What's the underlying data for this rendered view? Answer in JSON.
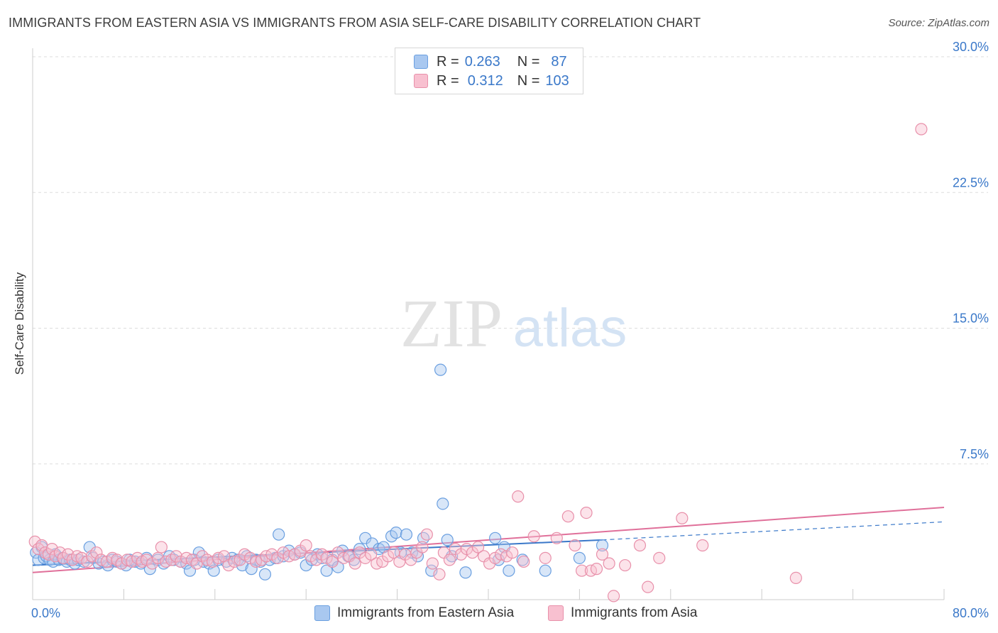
{
  "title": "IMMIGRANTS FROM EASTERN ASIA VS IMMIGRANTS FROM ASIA SELF-CARE DISABILITY CORRELATION CHART",
  "source": "Source: ZipAtlas.com",
  "watermark": {
    "zip": "ZIP",
    "atlas": "atlas"
  },
  "legend": {
    "rows": [
      {
        "r_label": "R =",
        "r_value": "0.263",
        "n_label": "N =",
        "n_value": "87",
        "color": "#a9c8f0",
        "border": "#6a9fe0"
      },
      {
        "r_label": "R =",
        "r_value": "0.312",
        "n_label": "N =",
        "n_value": "103",
        "color": "#f8c0d0",
        "border": "#e890aa"
      }
    ]
  },
  "bottom_legend": [
    {
      "label": "Immigrants from Eastern Asia",
      "color": "#a9c8f0",
      "border": "#6a9fe0"
    },
    {
      "label": "Immigrants from Asia",
      "color": "#f8c0d0",
      "border": "#e890aa"
    }
  ],
  "chart_data": {
    "type": "scatter",
    "title": "IMMIGRANTS FROM EASTERN ASIA VS IMMIGRANTS FROM ASIA SELF-CARE DISABILITY CORRELATION CHART",
    "xlabel": "",
    "ylabel": "Self-Care Disability",
    "xlim": [
      0,
      80
    ],
    "ylim": [
      0,
      30
    ],
    "x_tick_labels": [
      "0.0%",
      "80.0%"
    ],
    "y_ticks": [
      7.5,
      15.0,
      22.5,
      30.0
    ],
    "y_tick_labels": [
      "7.5%",
      "15.0%",
      "22.5%",
      "30.0%"
    ],
    "grid": true,
    "legend_position": "top-center",
    "series": [
      {
        "name": "Immigrants from Eastern Asia",
        "color": "#6a9fe0",
        "fill": "#a9c8f0",
        "trend": {
          "x0": 0,
          "y0": 1.9,
          "x1": 50,
          "y1": 3.3,
          "dash_to_x": 80,
          "dash_to_y": 4.3
        },
        "points": [
          [
            0.3,
            2.6
          ],
          [
            0.5,
            2.2
          ],
          [
            0.8,
            2.9
          ],
          [
            1.0,
            2.3
          ],
          [
            1.2,
            2.4
          ],
          [
            1.5,
            2.2
          ],
          [
            1.8,
            2.1
          ],
          [
            2.0,
            2.5
          ],
          [
            2.3,
            2.2
          ],
          [
            2.6,
            2.3
          ],
          [
            3.0,
            2.1
          ],
          [
            3.3,
            2.2
          ],
          [
            3.7,
            2.0
          ],
          [
            4.0,
            2.2
          ],
          [
            4.5,
            2.1
          ],
          [
            5.0,
            2.9
          ],
          [
            5.3,
            2.3
          ],
          [
            5.8,
            2.0
          ],
          [
            6.2,
            2.1
          ],
          [
            6.6,
            1.9
          ],
          [
            7.0,
            2.2
          ],
          [
            7.4,
            2.1
          ],
          [
            7.8,
            2.0
          ],
          [
            8.2,
            1.9
          ],
          [
            8.5,
            2.2
          ],
          [
            9.0,
            2.1
          ],
          [
            9.5,
            2.0
          ],
          [
            10.0,
            2.3
          ],
          [
            10.3,
            1.7
          ],
          [
            11.0,
            2.2
          ],
          [
            11.5,
            2.0
          ],
          [
            12.0,
            2.4
          ],
          [
            12.4,
            2.2
          ],
          [
            13.0,
            2.1
          ],
          [
            13.5,
            2.0
          ],
          [
            13.8,
            1.6
          ],
          [
            14.2,
            2.2
          ],
          [
            14.6,
            2.6
          ],
          [
            15.0,
            2.1
          ],
          [
            15.5,
            2.0
          ],
          [
            15.9,
            1.6
          ],
          [
            16.3,
            2.2
          ],
          [
            17.0,
            2.1
          ],
          [
            17.5,
            2.3
          ],
          [
            18.0,
            2.2
          ],
          [
            18.4,
            1.9
          ],
          [
            18.8,
            2.4
          ],
          [
            19.2,
            1.7
          ],
          [
            19.6,
            2.2
          ],
          [
            20.0,
            2.1
          ],
          [
            20.4,
            1.4
          ],
          [
            20.8,
            2.2
          ],
          [
            21.3,
            2.3
          ],
          [
            21.6,
            3.6
          ],
          [
            22.0,
            2.4
          ],
          [
            22.5,
            2.7
          ],
          [
            23.0,
            2.5
          ],
          [
            23.5,
            2.6
          ],
          [
            24.0,
            1.9
          ],
          [
            24.5,
            2.2
          ],
          [
            25.0,
            2.5
          ],
          [
            25.4,
            2.3
          ],
          [
            25.8,
            1.6
          ],
          [
            26.3,
            2.2
          ],
          [
            26.8,
            1.8
          ],
          [
            27.2,
            2.7
          ],
          [
            27.7,
            2.4
          ],
          [
            28.2,
            2.2
          ],
          [
            28.7,
            2.8
          ],
          [
            29.2,
            3.4
          ],
          [
            29.8,
            3.1
          ],
          [
            30.4,
            2.8
          ],
          [
            30.8,
            2.9
          ],
          [
            31.5,
            3.5
          ],
          [
            31.9,
            3.7
          ],
          [
            32.3,
            2.6
          ],
          [
            32.8,
            3.6
          ],
          [
            33.3,
            2.6
          ],
          [
            33.8,
            2.4
          ],
          [
            34.3,
            3.4
          ],
          [
            35.0,
            1.6
          ],
          [
            35.8,
            12.7
          ],
          [
            36.0,
            5.3
          ],
          [
            36.4,
            3.3
          ],
          [
            36.8,
            2.4
          ],
          [
            38.0,
            1.5
          ],
          [
            40.6,
            3.4
          ],
          [
            40.9,
            2.2
          ],
          [
            41.4,
            2.9
          ],
          [
            41.8,
            1.6
          ],
          [
            43.0,
            2.2
          ],
          [
            45.0,
            1.6
          ],
          [
            48.0,
            2.3
          ],
          [
            50.0,
            3.0
          ]
        ]
      },
      {
        "name": "Immigrants from Asia",
        "color": "#e890aa",
        "fill": "#f8c0d0",
        "trend": {
          "x0": 0,
          "y0": 1.5,
          "x1": 80,
          "y1": 5.1
        },
        "points": [
          [
            0.2,
            3.2
          ],
          [
            0.5,
            2.8
          ],
          [
            0.8,
            3.0
          ],
          [
            1.1,
            2.6
          ],
          [
            1.4,
            2.5
          ],
          [
            1.7,
            2.8
          ],
          [
            2.0,
            2.4
          ],
          [
            2.4,
            2.6
          ],
          [
            2.7,
            2.3
          ],
          [
            3.1,
            2.5
          ],
          [
            3.5,
            2.2
          ],
          [
            3.9,
            2.4
          ],
          [
            4.3,
            2.3
          ],
          [
            4.8,
            2.1
          ],
          [
            5.2,
            2.4
          ],
          [
            5.6,
            2.6
          ],
          [
            6.0,
            2.2
          ],
          [
            6.5,
            2.1
          ],
          [
            7.0,
            2.3
          ],
          [
            7.4,
            2.2
          ],
          [
            7.8,
            2.0
          ],
          [
            8.3,
            2.2
          ],
          [
            8.7,
            2.1
          ],
          [
            9.2,
            2.3
          ],
          [
            9.6,
            2.1
          ],
          [
            10.0,
            2.2
          ],
          [
            10.5,
            2.0
          ],
          [
            11.0,
            2.3
          ],
          [
            11.3,
            2.9
          ],
          [
            11.7,
            2.1
          ],
          [
            12.2,
            2.2
          ],
          [
            12.6,
            2.4
          ],
          [
            13.0,
            2.1
          ],
          [
            13.5,
            2.3
          ],
          [
            14.0,
            2.2
          ],
          [
            14.4,
            2.0
          ],
          [
            14.9,
            2.4
          ],
          [
            15.3,
            2.2
          ],
          [
            15.8,
            2.1
          ],
          [
            16.3,
            2.3
          ],
          [
            16.8,
            2.4
          ],
          [
            17.2,
            1.9
          ],
          [
            17.7,
            2.1
          ],
          [
            18.2,
            2.2
          ],
          [
            18.6,
            2.5
          ],
          [
            19.1,
            2.3
          ],
          [
            19.6,
            2.1
          ],
          [
            20.1,
            2.2
          ],
          [
            20.5,
            2.4
          ],
          [
            21.0,
            2.5
          ],
          [
            21.5,
            2.3
          ],
          [
            22.0,
            2.6
          ],
          [
            22.5,
            2.4
          ],
          [
            23.0,
            2.5
          ],
          [
            23.5,
            2.7
          ],
          [
            24.0,
            3.0
          ],
          [
            24.4,
            2.4
          ],
          [
            24.9,
            2.2
          ],
          [
            25.4,
            2.5
          ],
          [
            25.8,
            2.3
          ],
          [
            26.3,
            2.1
          ],
          [
            26.8,
            2.6
          ],
          [
            27.3,
            2.3
          ],
          [
            27.8,
            2.4
          ],
          [
            28.3,
            2.0
          ],
          [
            28.7,
            2.6
          ],
          [
            29.2,
            2.3
          ],
          [
            29.7,
            2.5
          ],
          [
            30.2,
            2.0
          ],
          [
            30.7,
            2.1
          ],
          [
            31.2,
            2.4
          ],
          [
            31.7,
            2.6
          ],
          [
            32.2,
            2.1
          ],
          [
            32.7,
            2.5
          ],
          [
            33.2,
            2.2
          ],
          [
            33.7,
            2.6
          ],
          [
            34.2,
            2.9
          ],
          [
            34.6,
            3.6
          ],
          [
            35.1,
            2.0
          ],
          [
            35.7,
            1.4
          ],
          [
            36.1,
            2.6
          ],
          [
            36.6,
            2.2
          ],
          [
            37.1,
            2.8
          ],
          [
            37.6,
            2.5
          ],
          [
            38.1,
            2.8
          ],
          [
            38.6,
            2.6
          ],
          [
            39.1,
            2.9
          ],
          [
            39.6,
            2.4
          ],
          [
            40.1,
            2.0
          ],
          [
            40.6,
            2.3
          ],
          [
            41.1,
            2.5
          ],
          [
            41.6,
            2.4
          ],
          [
            42.1,
            2.6
          ],
          [
            42.6,
            5.7
          ],
          [
            43.1,
            2.1
          ],
          [
            44.0,
            3.5
          ],
          [
            45.0,
            2.3
          ],
          [
            46.0,
            3.4
          ],
          [
            47.0,
            4.6
          ],
          [
            47.6,
            3.0
          ],
          [
            48.2,
            1.6
          ],
          [
            48.6,
            4.8
          ],
          [
            49.0,
            1.6
          ],
          [
            49.5,
            1.7
          ],
          [
            50.0,
            2.5
          ],
          [
            50.6,
            2.0
          ],
          [
            51.0,
            0.2
          ],
          [
            52.0,
            1.9
          ],
          [
            53.3,
            3.0
          ],
          [
            54.0,
            0.7
          ],
          [
            55.0,
            2.3
          ],
          [
            57.0,
            4.5
          ],
          [
            58.8,
            3.0
          ],
          [
            67.0,
            1.2
          ],
          [
            78.0,
            26.0
          ]
        ]
      }
    ]
  }
}
